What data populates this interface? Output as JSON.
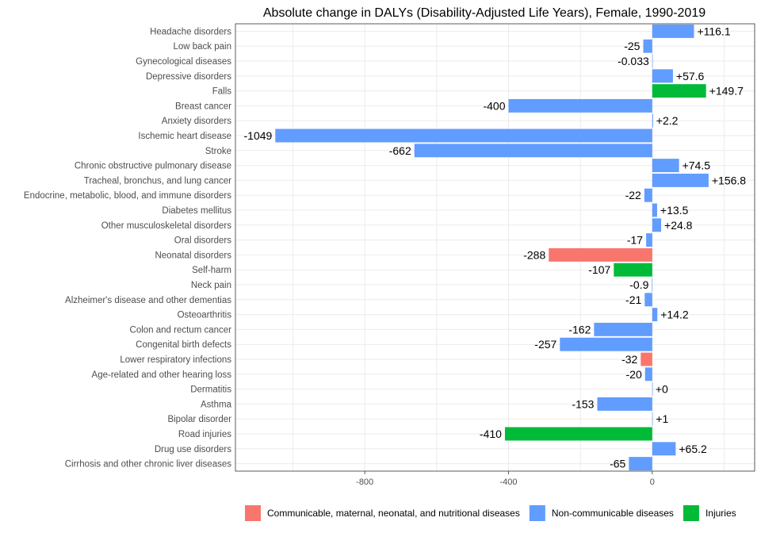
{
  "chart_data": {
    "type": "bar",
    "orientation": "horizontal",
    "title": "Absolute change in DALYs (Disability-Adjusted Life Years), Female, 1990-2019",
    "xlabel": "",
    "ylabel": "",
    "xlim": [
      -1160,
      285
    ],
    "xticks": [
      -800,
      -400,
      0
    ],
    "xtick_labels": [
      "-800",
      "-400",
      "0"
    ],
    "grid": true,
    "legend_position": "bottom",
    "colors": {
      "Communicable, maternal, neonatal, and nutritional diseases": "#F8766D",
      "Non-communicable diseases": "#619CFF",
      "Injuries": "#00BA38"
    },
    "legend": [
      "Communicable, maternal, neonatal, and nutritional diseases",
      "Non-communicable diseases",
      "Injuries"
    ],
    "bars": [
      {
        "category": "Headache disorders",
        "value": 116.1,
        "label": "+116.1",
        "group": "Non-communicable diseases"
      },
      {
        "category": "Low back pain",
        "value": -25,
        "label": "-25",
        "group": "Non-communicable diseases"
      },
      {
        "category": "Gynecological diseases",
        "value": -0.033,
        "label": "-0.033",
        "group": "Non-communicable diseases"
      },
      {
        "category": "Depressive disorders",
        "value": 57.6,
        "label": "+57.6",
        "group": "Non-communicable diseases"
      },
      {
        "category": "Falls",
        "value": 149.7,
        "label": "+149.7",
        "group": "Injuries"
      },
      {
        "category": "Breast cancer",
        "value": -400,
        "label": "-400",
        "group": "Non-communicable diseases"
      },
      {
        "category": "Anxiety disorders",
        "value": 2.2,
        "label": "+2.2",
        "group": "Non-communicable diseases"
      },
      {
        "category": "Ischemic heart disease",
        "value": -1049,
        "label": "-1049",
        "group": "Non-communicable diseases"
      },
      {
        "category": "Stroke",
        "value": -662,
        "label": "-662",
        "group": "Non-communicable diseases"
      },
      {
        "category": "Chronic obstructive pulmonary disease",
        "value": 74.5,
        "label": "+74.5",
        "group": "Non-communicable diseases"
      },
      {
        "category": "Tracheal, bronchus, and lung cancer",
        "value": 156.8,
        "label": "+156.8",
        "group": "Non-communicable diseases"
      },
      {
        "category": "Endocrine, metabolic, blood, and immune disorders",
        "value": -22,
        "label": "-22",
        "group": "Non-communicable diseases"
      },
      {
        "category": "Diabetes mellitus",
        "value": 13.5,
        "label": "+13.5",
        "group": "Non-communicable diseases"
      },
      {
        "category": "Other musculoskeletal disorders",
        "value": 24.8,
        "label": "+24.8",
        "group": "Non-communicable diseases"
      },
      {
        "category": "Oral disorders",
        "value": -17,
        "label": "-17",
        "group": "Non-communicable diseases"
      },
      {
        "category": "Neonatal disorders",
        "value": -288,
        "label": "-288",
        "group": "Communicable, maternal, neonatal, and nutritional diseases"
      },
      {
        "category": "Self-harm",
        "value": -107,
        "label": "-107",
        "group": "Injuries"
      },
      {
        "category": "Neck pain",
        "value": -0.9,
        "label": "-0.9",
        "group": "Non-communicable diseases"
      },
      {
        "category": "Alzheimer's disease and other dementias",
        "value": -21,
        "label": "-21",
        "group": "Non-communicable diseases"
      },
      {
        "category": "Osteoarthritis",
        "value": 14.2,
        "label": "+14.2",
        "group": "Non-communicable diseases"
      },
      {
        "category": "Colon and rectum cancer",
        "value": -162,
        "label": "-162",
        "group": "Non-communicable diseases"
      },
      {
        "category": "Congenital birth defects",
        "value": -257,
        "label": "-257",
        "group": "Non-communicable diseases"
      },
      {
        "category": "Lower respiratory infections",
        "value": -32,
        "label": "-32",
        "group": "Communicable, maternal, neonatal, and nutritional diseases"
      },
      {
        "category": "Age-related and other hearing loss",
        "value": -20,
        "label": "-20",
        "group": "Non-communicable diseases"
      },
      {
        "category": "Dermatitis",
        "value": 0,
        "label": "+0",
        "group": "Non-communicable diseases"
      },
      {
        "category": "Asthma",
        "value": -153,
        "label": "-153",
        "group": "Non-communicable diseases"
      },
      {
        "category": "Bipolar disorder",
        "value": 1,
        "label": "+1",
        "group": "Non-communicable diseases"
      },
      {
        "category": "Road injuries",
        "value": -410,
        "label": "-410",
        "group": "Injuries"
      },
      {
        "category": "Drug use disorders",
        "value": 65.2,
        "label": "+65.2",
        "group": "Non-communicable diseases"
      },
      {
        "category": "Cirrhosis and other chronic liver diseases",
        "value": -65,
        "label": "-65",
        "group": "Non-communicable diseases"
      }
    ]
  }
}
